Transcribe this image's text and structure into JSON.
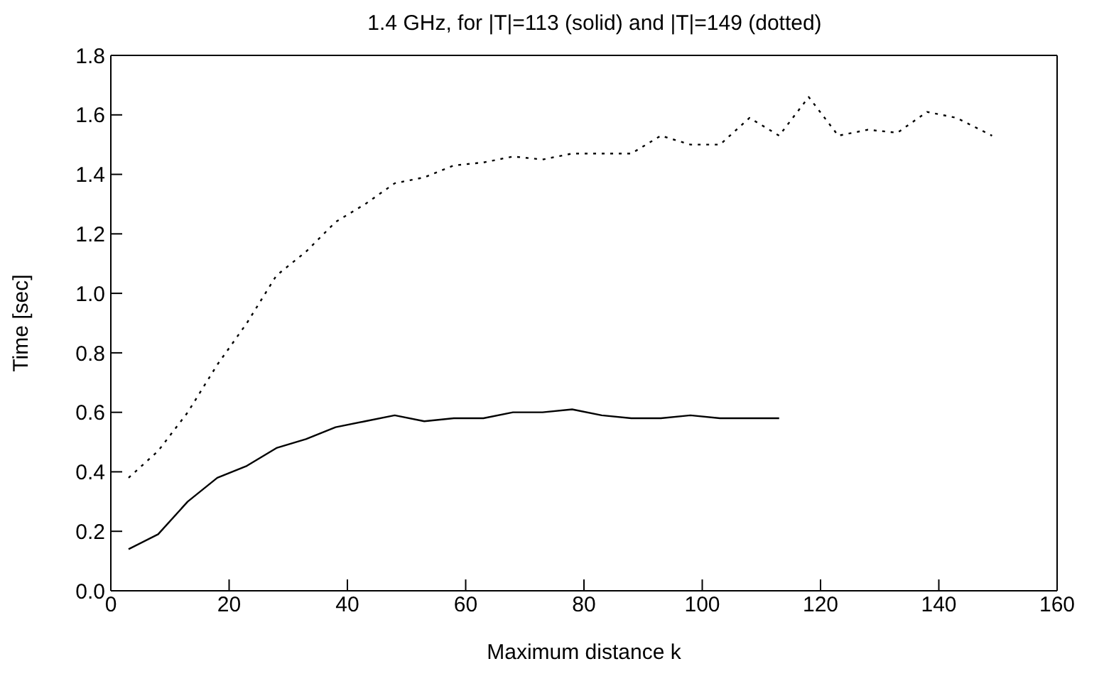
{
  "chart_data": {
    "type": "line",
    "title": "1.4 GHz, for |T|=113 (solid) and |T|=149 (dotted)",
    "xlabel": "Maximum distance k",
    "ylabel": "Time [sec]",
    "xlim": [
      0,
      160
    ],
    "xticks": [
      0,
      20,
      40,
      60,
      80,
      100,
      120,
      140,
      160
    ],
    "ylim": [
      0,
      1.8
    ],
    "yticks": [
      {
        "value": 0,
        "label": "0.0"
      },
      {
        "value": 0.2,
        "label": "0.2"
      },
      {
        "value": 0.4,
        "label": "0.4"
      },
      {
        "value": 0.6,
        "label": "0.6"
      },
      {
        "value": 0.8,
        "label": "0.8"
      },
      {
        "value": 1,
        "label": "1.0"
      },
      {
        "value": 1.2,
        "label": "1.2"
      },
      {
        "value": 1.4,
        "label": "1.4"
      },
      {
        "value": 1.6,
        "label": "1.6"
      },
      {
        "value": 1.8,
        "label": "1.8"
      }
    ],
    "grid": false,
    "legend": false,
    "marker": "none",
    "series": [
      {
        "color": "#000000",
        "line_style": "solid",
        "x": [
          3,
          8,
          13,
          18,
          23,
          28,
          33,
          38,
          43,
          48,
          53,
          58,
          63,
          68,
          73,
          78,
          83,
          88,
          93,
          98,
          103,
          108,
          113
        ],
        "values": [
          0.14,
          0.19,
          0.3,
          0.38,
          0.42,
          0.48,
          0.51,
          0.55,
          0.57,
          0.59,
          0.57,
          0.58,
          0.58,
          0.6,
          0.6,
          0.61,
          0.59,
          0.58,
          0.58,
          0.59,
          0.58,
          0.58,
          0.58
        ]
      },
      {
        "color": "#000000",
        "line_style": "dotted",
        "x": [
          3,
          8,
          13,
          18,
          23,
          28,
          33,
          38,
          43,
          48,
          53,
          58,
          63,
          68,
          73,
          78,
          83,
          88,
          93,
          98,
          103,
          108,
          113,
          118,
          123,
          128,
          133,
          138,
          143,
          149
        ],
        "values": [
          0.38,
          0.47,
          0.6,
          0.76,
          0.9,
          1.06,
          1.14,
          1.24,
          1.3,
          1.37,
          1.39,
          1.43,
          1.44,
          1.46,
          1.45,
          1.47,
          1.47,
          1.47,
          1.53,
          1.5,
          1.5,
          1.59,
          1.53,
          1.66,
          1.53,
          1.55,
          1.54,
          1.61,
          1.59,
          1.53
        ]
      }
    ]
  }
}
